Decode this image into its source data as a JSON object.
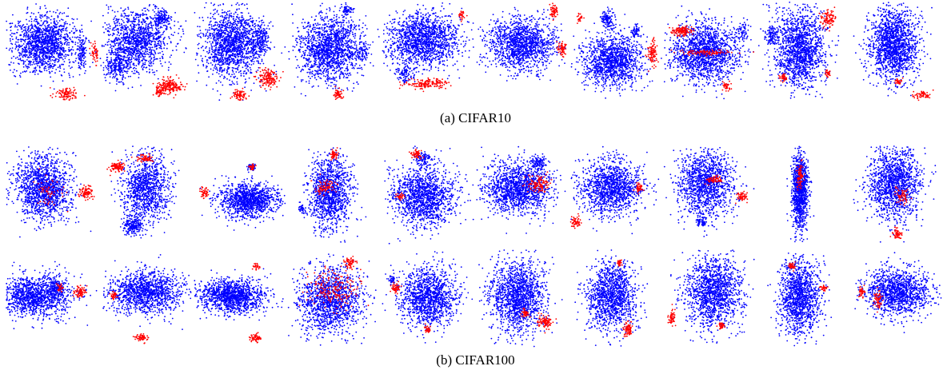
{
  "captions": {
    "a": "(a)  CIFAR10",
    "b": "(b)  CIFAR100"
  },
  "colors": {
    "in_distribution": "#0000ff",
    "outlier": "#ff0000"
  },
  "chart_data": [
    {
      "type": "scatter",
      "caption": "(a)  CIFAR10",
      "panel_count": 10,
      "grid": false,
      "axes": "none",
      "legend": "none",
      "series": [
        {
          "color": "#0000ff"
        },
        {
          "color": "#ff0000"
        }
      ],
      "panels": [
        {
          "blue": [
            [
              0.45,
              0.45,
              0.38,
              0.34,
              1400
            ],
            [
              0.92,
              0.55,
              0.06,
              0.2,
              120
            ]
          ],
          "red": [
            [
              1.1,
              0.55,
              0.07,
              0.14,
              80
            ],
            [
              0.72,
              1.05,
              0.16,
              0.08,
              110
            ]
          ]
        },
        {
          "blue": [
            [
              0.45,
              0.4,
              0.4,
              0.36,
              1200
            ],
            [
              0.2,
              0.7,
              0.15,
              0.2,
              250
            ],
            [
              0.75,
              0.15,
              0.12,
              0.1,
              150
            ]
          ],
          "red": [
            [
              0.85,
              0.95,
              0.16,
              0.1,
              180
            ],
            [
              0.72,
              1.02,
              0.06,
              0.06,
              60
            ]
          ]
        },
        {
          "blue": [
            [
              0.45,
              0.45,
              0.36,
              0.4,
              1500
            ],
            [
              0.8,
              0.4,
              0.12,
              0.2,
              200
            ]
          ],
          "red": [
            [
              0.9,
              0.85,
              0.12,
              0.12,
              150
            ],
            [
              0.55,
              1.05,
              0.08,
              0.06,
              80
            ]
          ]
        },
        {
          "blue": [
            [
              0.5,
              0.5,
              0.38,
              0.4,
              1500
            ],
            [
              0.72,
              0.05,
              0.06,
              0.06,
              60
            ],
            [
              0.9,
              0.55,
              0.1,
              0.12,
              80
            ]
          ],
          "red": [
            [
              0.6,
              1.05,
              0.06,
              0.06,
              60
            ]
          ]
        },
        {
          "blue": [
            [
              0.5,
              0.4,
              0.45,
              0.32,
              1500
            ],
            [
              0.25,
              0.8,
              0.12,
              0.1,
              100
            ]
          ],
          "red": [
            [
              0.55,
              0.92,
              0.25,
              0.06,
              160
            ],
            [
              0.98,
              0.1,
              0.04,
              0.06,
              30
            ]
          ]
        },
        {
          "blue": [
            [
              0.55,
              0.45,
              0.42,
              0.3,
              1400
            ]
          ],
          "red": [
            [
              0.95,
              0.05,
              0.05,
              0.08,
              60
            ],
            [
              1.05,
              0.5,
              0.05,
              0.08,
              60
            ]
          ]
        },
        {
          "blue": [
            [
              0.5,
              0.65,
              0.38,
              0.3,
              1300
            ],
            [
              0.45,
              0.15,
              0.1,
              0.12,
              120
            ],
            [
              0.8,
              0.3,
              0.06,
              0.08,
              60
            ]
          ],
          "red": [
            [
              1.0,
              0.55,
              0.06,
              0.14,
              100
            ],
            [
              0.1,
              0.15,
              0.04,
              0.05,
              25
            ]
          ]
        },
        {
          "blue": [
            [
              0.5,
              0.55,
              0.45,
              0.35,
              1600
            ],
            [
              0.95,
              0.3,
              0.06,
              0.1,
              60
            ]
          ],
          "red": [
            [
              0.2,
              0.3,
              0.12,
              0.05,
              120
            ],
            [
              0.5,
              0.55,
              0.35,
              0.03,
              100
            ],
            [
              0.75,
              0.95,
              0.05,
              0.05,
              40
            ]
          ]
        },
        {
          "blue": [
            [
              0.5,
              0.5,
              0.32,
              0.45,
              1500
            ],
            [
              0.15,
              0.35,
              0.08,
              0.15,
              100
            ]
          ],
          "red": [
            [
              0.85,
              0.15,
              0.1,
              0.12,
              100
            ],
            [
              0.3,
              0.85,
              0.05,
              0.05,
              40
            ],
            [
              0.85,
              0.8,
              0.04,
              0.05,
              30
            ]
          ]
        },
        {
          "blue": [
            [
              0.5,
              0.45,
              0.3,
              0.42,
              1600
            ]
          ],
          "red": [
            [
              0.85,
              1.05,
              0.1,
              0.05,
              60
            ],
            [
              0.55,
              0.9,
              0.05,
              0.04,
              30
            ]
          ]
        }
      ]
    },
    {
      "type": "scatter",
      "caption": "(b)  CIFAR100",
      "panel_count": 20,
      "grid": false,
      "axes": "none",
      "legend": "none",
      "series": [
        {
          "color": "#0000ff"
        },
        {
          "color": "#ff0000"
        }
      ],
      "panels": [
        {
          "blue": [
            [
              0.45,
              0.45,
              0.35,
              0.38,
              1400
            ]
          ],
          "red": [
            [
              0.98,
              0.5,
              0.08,
              0.08,
              100
            ],
            [
              0.5,
              0.5,
              0.2,
              0.2,
              60
            ]
          ]
        },
        {
          "blue": [
            [
              0.55,
              0.45,
              0.3,
              0.4,
              1100
            ],
            [
              0.4,
              0.9,
              0.12,
              0.1,
              200
            ]
          ],
          "red": [
            [
              0.2,
              0.2,
              0.1,
              0.06,
              100
            ],
            [
              0.55,
              0.1,
              0.1,
              0.05,
              60
            ]
          ]
        },
        {
          "blue": [
            [
              0.65,
              0.6,
              0.35,
              0.2,
              1200
            ],
            [
              0.7,
              0.2,
              0.05,
              0.05,
              50
            ]
          ],
          "red": [
            [
              0.1,
              0.5,
              0.05,
              0.06,
              50
            ],
            [
              0.7,
              0.2,
              0.03,
              0.03,
              30
            ]
          ]
        },
        {
          "blue": [
            [
              0.5,
              0.5,
              0.25,
              0.45,
              1200
            ],
            [
              0.15,
              0.7,
              0.05,
              0.06,
              40
            ]
          ],
          "red": [
            [
              0.55,
              0.05,
              0.05,
              0.05,
              50
            ],
            [
              0.45,
              0.45,
              0.12,
              0.1,
              80
            ]
          ]
        },
        {
          "blue": [
            [
              0.5,
              0.55,
              0.4,
              0.35,
              1400
            ],
            [
              0.5,
              0.1,
              0.1,
              0.1,
              100
            ]
          ],
          "red": [
            [
              0.4,
              0.05,
              0.06,
              0.05,
              60
            ],
            [
              0.2,
              0.55,
              0.05,
              0.04,
              40
            ]
          ]
        },
        {
          "blue": [
            [
              0.5,
              0.45,
              0.42,
              0.3,
              1400
            ],
            [
              0.75,
              0.15,
              0.1,
              0.08,
              120
            ]
          ],
          "red": [
            [
              0.75,
              0.4,
              0.15,
              0.1,
              120
            ]
          ]
        },
        {
          "blue": [
            [
              0.5,
              0.45,
              0.38,
              0.35,
              1300
            ]
          ],
          "red": [
            [
              0.05,
              0.85,
              0.06,
              0.08,
              60
            ],
            [
              0.85,
              0.45,
              0.05,
              0.06,
              40
            ]
          ]
        },
        {
          "blue": [
            [
              0.5,
              0.4,
              0.35,
              0.38,
              1300
            ],
            [
              0.45,
              0.85,
              0.08,
              0.06,
              60
            ]
          ],
          "red": [
            [
              0.95,
              0.55,
              0.05,
              0.06,
              60
            ],
            [
              0.6,
              0.35,
              0.1,
              0.05,
              60
            ]
          ]
        },
        {
          "blue": [
            [
              0.5,
              0.5,
              0.1,
              0.45,
              1100
            ]
          ],
          "red": [
            [
              0.5,
              0.3,
              0.05,
              0.15,
              80
            ]
          ]
        },
        {
          "blue": [
            [
              0.5,
              0.4,
              0.32,
              0.42,
              1400
            ]
          ],
          "red": [
            [
              0.55,
              1.0,
              0.05,
              0.06,
              60
            ],
            [
              0.6,
              0.55,
              0.08,
              0.1,
              60
            ]
          ]
        },
        {
          "blue": [
            [
              0.35,
              0.5,
              0.45,
              0.25,
              1300
            ],
            [
              0.6,
              0.4,
              0.08,
              0.1,
              100
            ]
          ],
          "red": [
            [
              0.9,
              0.45,
              0.08,
              0.06,
              80
            ],
            [
              0.65,
              0.4,
              0.04,
              0.05,
              30
            ]
          ]
        },
        {
          "blue": [
            [
              0.55,
              0.45,
              0.45,
              0.25,
              1300
            ]
          ],
          "red": [
            [
              0.5,
              1.0,
              0.08,
              0.05,
              60
            ],
            [
              0.15,
              0.5,
              0.04,
              0.05,
              40
            ]
          ]
        },
        {
          "blue": [
            [
              0.45,
              0.5,
              0.42,
              0.2,
              1300
            ]
          ],
          "red": [
            [
              0.75,
              1.0,
              0.08,
              0.05,
              60
            ],
            [
              0.75,
              0.15,
              0.04,
              0.04,
              30
            ]
          ]
        },
        {
          "blue": [
            [
              0.5,
              0.55,
              0.4,
              0.4,
              1400
            ]
          ],
          "red": [
            [
              0.55,
              0.4,
              0.3,
              0.25,
              200
            ],
            [
              0.75,
              0.1,
              0.08,
              0.06,
              60
            ]
          ]
        },
        {
          "blue": [
            [
              0.55,
              0.5,
              0.35,
              0.35,
              1300
            ],
            [
              0.1,
              0.3,
              0.05,
              0.05,
              40
            ]
          ],
          "red": [
            [
              0.15,
              0.4,
              0.06,
              0.06,
              60
            ],
            [
              0.55,
              0.9,
              0.04,
              0.04,
              30
            ]
          ]
        },
        {
          "blue": [
            [
              0.5,
              0.5,
              0.35,
              0.42,
              1500
            ]
          ],
          "red": [
            [
              0.85,
              0.8,
              0.1,
              0.08,
              100
            ],
            [
              0.6,
              0.7,
              0.05,
              0.05,
              40
            ]
          ]
        },
        {
          "blue": [
            [
              0.5,
              0.5,
              0.3,
              0.4,
              1300
            ]
          ],
          "red": [
            [
              0.7,
              0.9,
              0.05,
              0.1,
              80
            ],
            [
              0.6,
              0.1,
              0.03,
              0.04,
              25
            ]
          ]
        },
        {
          "blue": [
            [
              0.6,
              0.45,
              0.35,
              0.42,
              1400
            ]
          ],
          "red": [
            [
              0.08,
              0.75,
              0.05,
              0.08,
              60
            ],
            [
              0.7,
              0.85,
              0.05,
              0.05,
              40
            ]
          ]
        },
        {
          "blue": [
            [
              0.5,
              0.5,
              0.25,
              0.45,
              1300
            ]
          ],
          "red": [
            [
              0.4,
              0.15,
              0.05,
              0.05,
              40
            ],
            [
              0.8,
              0.4,
              0.04,
              0.05,
              30
            ]
          ]
        },
        {
          "blue": [
            [
              0.55,
              0.45,
              0.4,
              0.28,
              1300
            ]
          ],
          "red": [
            [
              0.1,
              0.45,
              0.04,
              0.06,
              40
            ],
            [
              0.3,
              0.55,
              0.05,
              0.1,
              60
            ]
          ]
        }
      ]
    }
  ]
}
